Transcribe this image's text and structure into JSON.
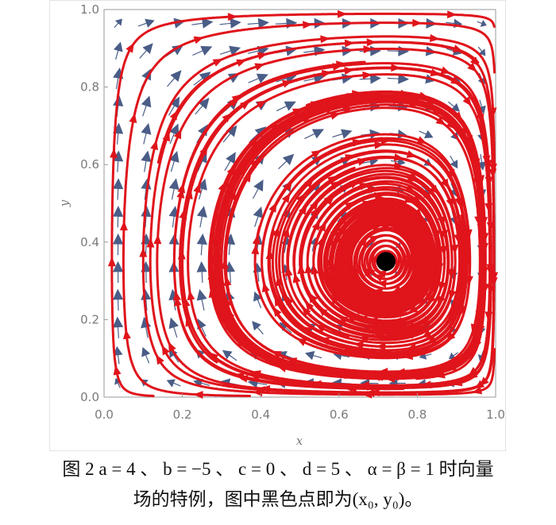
{
  "chart_data": {
    "type": "vector-field streamplot",
    "xlabel": "x",
    "ylabel": "y",
    "xlim": [
      0,
      1
    ],
    "ylim": [
      0,
      1
    ],
    "x_ticks": [
      "0.0",
      "0.2",
      "0.4",
      "0.6",
      "0.8",
      "1.0"
    ],
    "y_ticks": [
      "0.0",
      "0.2",
      "0.4",
      "0.6",
      "0.8",
      "1.0"
    ],
    "parameters": {
      "a": 4,
      "b": -5,
      "c": 0,
      "d": 5,
      "alpha": 1,
      "beta": 1
    },
    "equilibrium_point": {
      "x": 0.72,
      "y": 0.35,
      "label": "(x0, y0)"
    },
    "colors": {
      "streamlines": "#e0141b",
      "vectors": "#4a5d87",
      "equilibrium": "#000000"
    }
  },
  "caption": {
    "line1": "图 2  a = 4 、 b = −5 、 c = 0 、 d = 5 、 α = β = 1 时向量",
    "line2": "场的特例，图中黑色点即为(x₀, y₀)。"
  }
}
